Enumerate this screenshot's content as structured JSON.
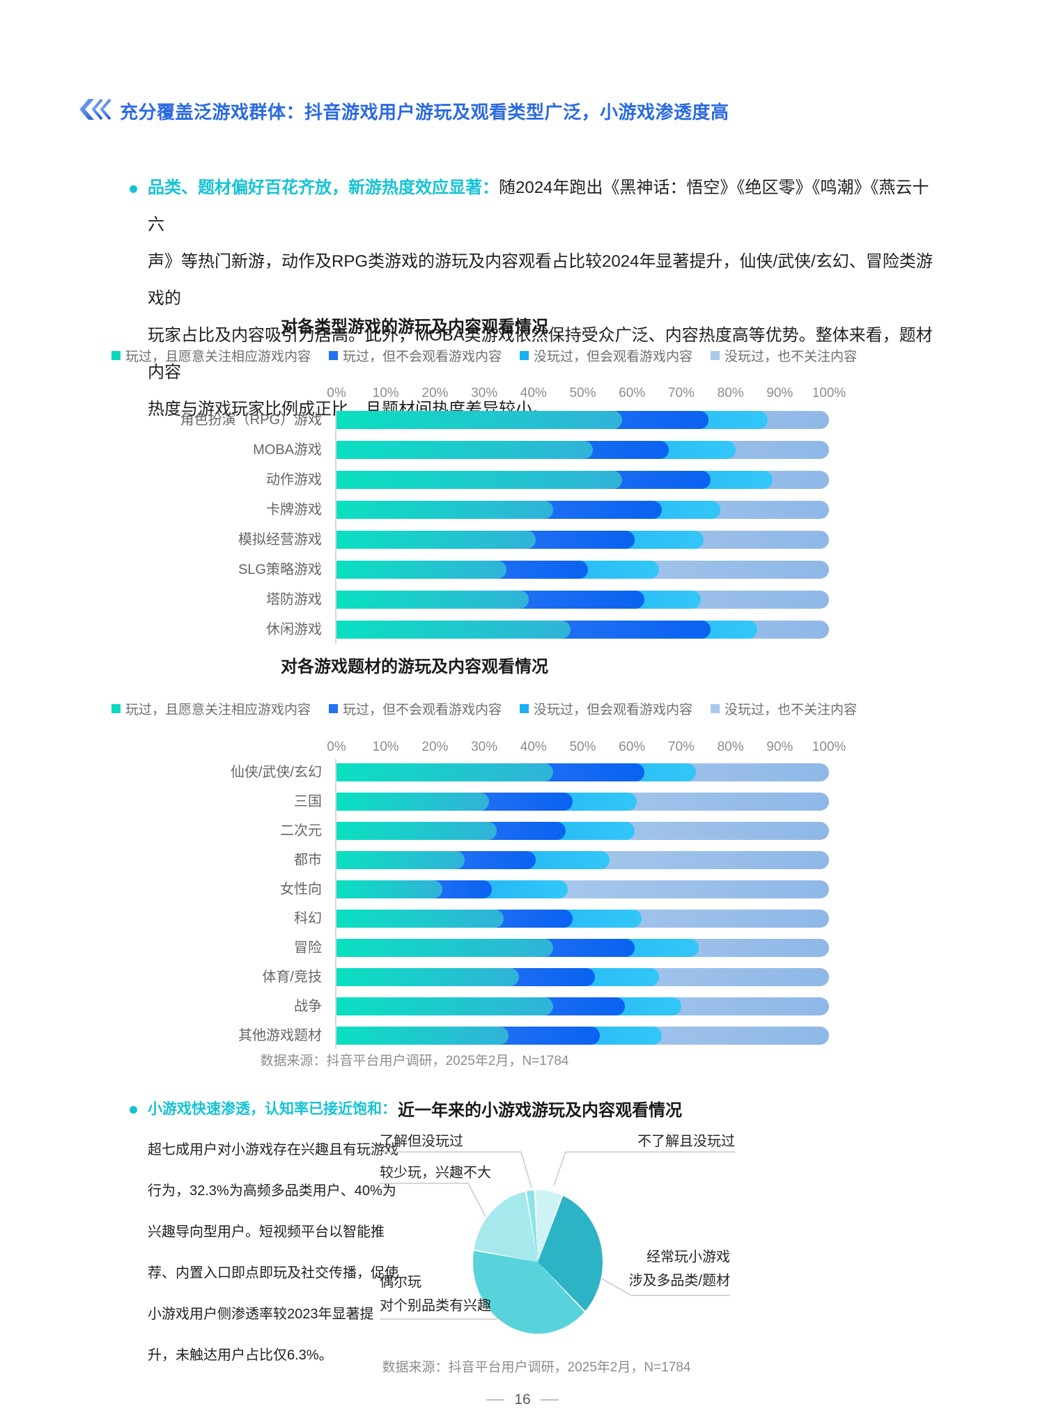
{
  "page": {
    "number": "16"
  },
  "colors": {
    "accent_blue": "#2b6ae0",
    "accent_cyan": "#14c3d4",
    "seg_teal": [
      "#0ae0c0",
      "#31b2d9"
    ],
    "seg_blue": [
      "#3f84f4",
      "#0a62f1"
    ],
    "seg_sky": [
      "#0aa3ee",
      "#33c6f8"
    ],
    "seg_pale": [
      "#b9d3ef",
      "#8fb8e7"
    ]
  },
  "header": {
    "title": "充分覆盖泛游戏群体：抖音游戏用户游玩及观看类型广泛，小游戏渗透度高"
  },
  "intro": {
    "lead": "品类、题材偏好百花齐放，新游热度效应显著：",
    "body": "随2024年跑出《黑神话：悟空》《绝区零》《鸣潮》《燕云十六\n声》等热门新游，动作及RPG类游戏的游玩及内容观看占比较2024年显著提升，仙侠/武侠/玄幻、冒险类游戏的\n玩家占比及内容吸引力居高。此外，MOBA类游戏依然保持受众广泛、内容热度高等优势。整体来看，题材内容\n热度与游戏玩家比例成正比，且题材间热度差异较小。"
  },
  "bar_legend": [
    {
      "label": "玩过，且愿意关注相应游戏内容",
      "color": "#0bd8bf"
    },
    {
      "label": "玩过，但不会观看游戏内容",
      "color": "#1f73f3"
    },
    {
      "label": "没玩过，但会观看游戏内容",
      "color": "#18b0f2"
    },
    {
      "label": "没玩过，也不关注内容",
      "color": "#a9c9ec"
    }
  ],
  "section2": {
    "lead": "小游戏快速渗透，认知率已接近饱和：",
    "body": "超七成用户对小游戏存在兴趣且有玩游戏\n行为，32.3%为高频多品类用户、40%为\n兴趣导向型用户。短视频平台以智能推\n荐、内置入口即点即玩及社交传播，促使\n小游戏用户侧渗透率较2023年显著提\n升，未触达用户占比仅6.3%。"
  },
  "chart_data": [
    {
      "type": "bar",
      "title": "对各类型游戏的游玩及内容观看情况",
      "orientation": "horizontal-stacked",
      "xlim": [
        0,
        100
      ],
      "x_ticks": [
        "0%",
        "10%",
        "20%",
        "30%",
        "40%",
        "50%",
        "60%",
        "70%",
        "80%",
        "90%",
        "100%"
      ],
      "categories": [
        "角色扮演（RPG）游戏",
        "MOBA游戏",
        "动作游戏",
        "卡牌游戏",
        "模拟经营游戏",
        "SLG策略游戏",
        "塔防游戏",
        "休闲游戏"
      ],
      "series": [
        {
          "name": "玩过，且愿意关注相应游戏内容",
          "colors": [
            "#0ae0c0",
            "#31b2d9"
          ],
          "values": [
            58,
            52,
            58,
            44,
            40.5,
            34.5,
            39,
            47.5
          ]
        },
        {
          "name": "玩过，但不会观看游戏内容",
          "colors": [
            "#3f84f4",
            "#0a62f1"
          ],
          "values": [
            17.5,
            15.5,
            18,
            22,
            20,
            16.5,
            23.5,
            28.5
          ]
        },
        {
          "name": "没玩过，但会观看游戏内容",
          "colors": [
            "#0aa3ee",
            "#33c6f8"
          ],
          "values": [
            12,
            13.5,
            12.5,
            12,
            14,
            14.5,
            11.5,
            9.5
          ]
        },
        {
          "name": "没玩过，也不关注内容",
          "colors": [
            "#b9d3ef",
            "#8fb8e7"
          ],
          "values": [
            12.5,
            19,
            11.5,
            22,
            25.5,
            34.5,
            26,
            14.5
          ]
        }
      ]
    },
    {
      "type": "bar",
      "title": "对各游戏题材的游玩及内容观看情况",
      "orientation": "horizontal-stacked",
      "xlim": [
        0,
        100
      ],
      "x_ticks": [
        "0%",
        "10%",
        "20%",
        "30%",
        "40%",
        "50%",
        "60%",
        "70%",
        "80%",
        "90%",
        "100%"
      ],
      "categories": [
        "仙侠/武侠/玄幻",
        "三国",
        "二次元",
        "都市",
        "女性向",
        "科幻",
        "冒险",
        "体育/竞技",
        "战争",
        "其他游戏题材"
      ],
      "series": [
        {
          "name": "玩过，且愿意关注相应游戏内容",
          "colors": [
            "#0ae0c0",
            "#31b2d9"
          ],
          "values": [
            44,
            31,
            32.5,
            26,
            21.5,
            34,
            44,
            37,
            44,
            35
          ]
        },
        {
          "name": "玩过，但不会观看游戏内容",
          "colors": [
            "#3f84f4",
            "#0a62f1"
          ],
          "values": [
            18.5,
            17,
            14,
            14.5,
            10,
            14,
            16.5,
            15.5,
            14.5,
            18.5
          ]
        },
        {
          "name": "没玩过，但会观看游戏内容",
          "colors": [
            "#0aa3ee",
            "#33c6f8"
          ],
          "values": [
            10.5,
            13,
            14,
            15,
            15.5,
            14,
            13,
            13,
            11.5,
            12.5
          ]
        },
        {
          "name": "没玩过，也不关注内容",
          "colors": [
            "#b9d3ef",
            "#8fb8e7"
          ],
          "values": [
            27,
            39,
            39.5,
            44.5,
            53,
            38,
            26.5,
            34.5,
            30,
            34
          ]
        }
      ],
      "source": "数据来源：抖音平台用户调研，2025年2月，N=1784"
    },
    {
      "type": "pie",
      "title": "近一年来的小游戏游玩及内容观看情况",
      "start_angle_deg": -9,
      "slices": [
        {
          "label": "了解但没玩过",
          "value": 2,
          "color": "#8de2e9"
        },
        {
          "label": "不了解且没玩过",
          "value": 6.3,
          "color": "#cff2f5"
        },
        {
          "label": "经常玩小游戏\n涉及多品类/题材",
          "value": 32.3,
          "color": "#2cb3c6"
        },
        {
          "label": "偶尔玩\n对个别品类有兴趣",
          "value": 40,
          "color": "#58d3db"
        },
        {
          "label": "较少玩，兴趣不大",
          "value": 19.4,
          "color": "#a6e9ed"
        }
      ],
      "source": "数据来源：抖音平台用户调研，2025年2月，N=1784"
    }
  ]
}
